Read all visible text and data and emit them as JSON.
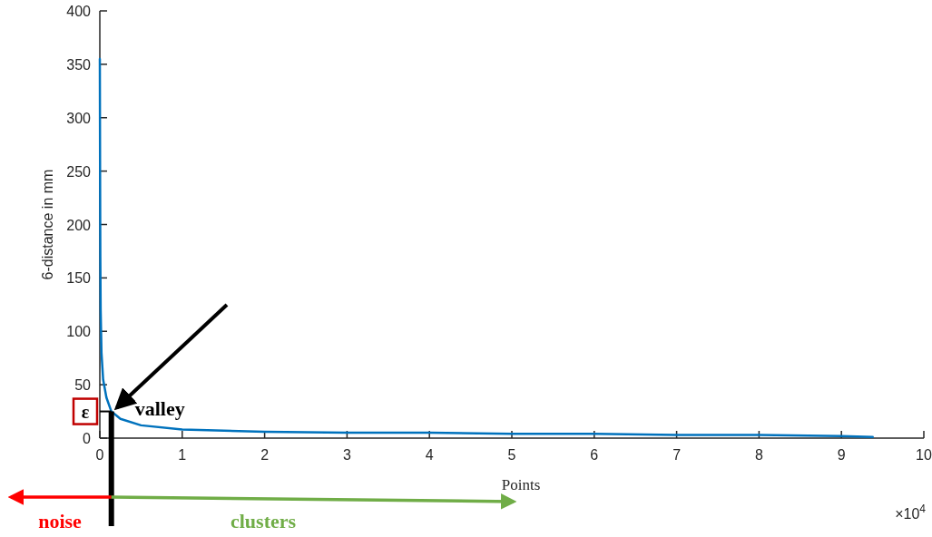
{
  "chart_data": {
    "type": "line",
    "xlabel": "Points",
    "ylabel": "6-distance in mm",
    "xlim": [
      0,
      10
    ],
    "xticks": [
      0,
      1,
      2,
      3,
      4,
      5,
      6,
      7,
      8,
      9,
      10
    ],
    "ylim": [
      0,
      400
    ],
    "yticks": [
      0,
      50,
      100,
      150,
      200,
      250,
      300,
      350,
      400
    ],
    "grid": false,
    "marker": "none",
    "line_style": "solid",
    "series": [
      {
        "color": "#0072bd",
        "x": [
          0,
          0.003,
          0.006,
          0.01,
          0.02,
          0.04,
          0.08,
          0.14,
          0.25,
          0.5,
          1,
          2,
          3,
          4,
          5,
          6,
          7,
          8,
          9,
          9.38
        ],
        "values": [
          355,
          250,
          170,
          120,
          80,
          55,
          38,
          25,
          18,
          12,
          8,
          6,
          5,
          5,
          4,
          4,
          3,
          3,
          2,
          1
        ]
      }
    ],
    "annotations": [
      {
        "text": "valley",
        "x": 0.14,
        "y": 25
      },
      "ε",
      "noise",
      "clusters",
      "×10$^{4}$"
    ]
  }
}
